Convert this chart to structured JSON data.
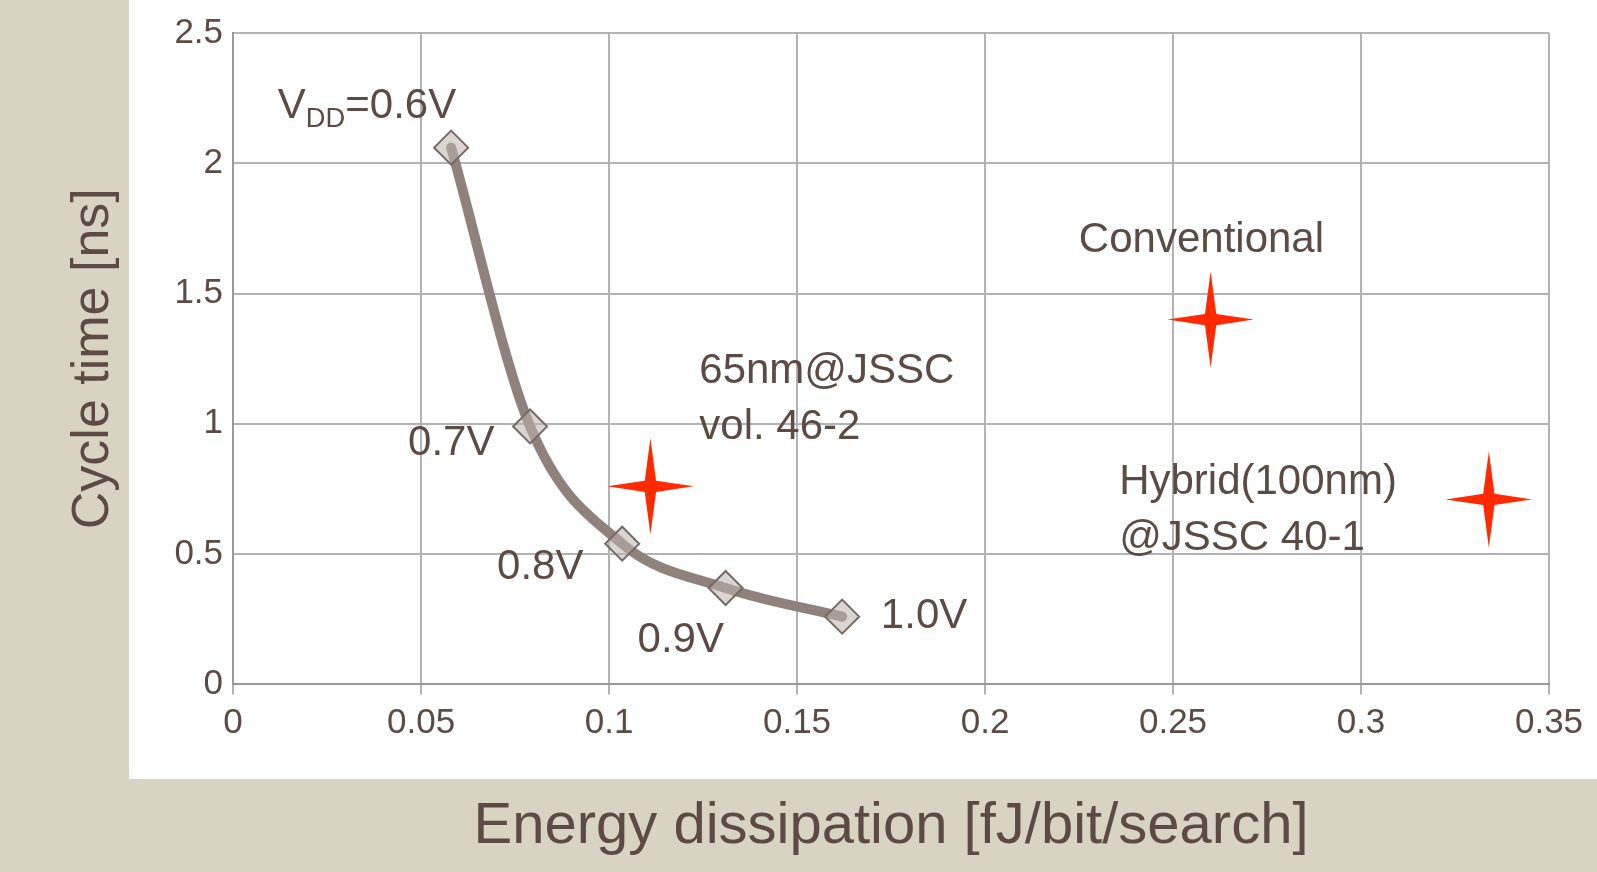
{
  "chart_data": {
    "type": "scatter",
    "xlabel": "Energy dissipation [fJ/bit/search]",
    "ylabel": "Cycle time [ns]",
    "xlim": [
      0,
      0.35
    ],
    "xticks": [
      0,
      0.05,
      0.1,
      0.15,
      0.2,
      0.25,
      0.3,
      0.35
    ],
    "ylim": [
      0,
      2.5
    ],
    "yticks": [
      0,
      0.5,
      1,
      1.5,
      2,
      2.5
    ],
    "grid": true,
    "legend": false,
    "series": [
      {
        "type": "line",
        "color": "#8f827c",
        "marker": "diamond",
        "x": [
          0.058,
          0.079,
          0.1035,
          0.131,
          0.162
        ],
        "values": [
          2.06,
          0.99,
          0.54,
          0.37,
          0.26
        ]
      },
      {
        "color": "#ff2a00",
        "marker": "star",
        "x": [
          0.111,
          0.26,
          0.334
        ],
        "values": [
          0.76,
          1.4,
          0.71
        ]
      }
    ],
    "annotations": [
      {
        "text": "V$_{DD}$=0.6V",
        "x": 0.058,
        "y": 2.06
      },
      {
        "text": "0.7V",
        "x": 0.079,
        "y": 0.99
      },
      {
        "text": "0.8V",
        "x": 0.1035,
        "y": 0.54
      },
      {
        "text": "0.9V",
        "x": 0.131,
        "y": 0.37
      },
      {
        "text": "1.0V",
        "x": 0.162,
        "y": 0.26
      },
      {
        "text": "65nm@JSSC\nvol. 46-2",
        "x": 0.111,
        "y": 0.76
      },
      {
        "text": "Conventional",
        "x": 0.26,
        "y": 1.4
      },
      {
        "text": "Hybrid(100nm)\n@JSSC 40-1",
        "x": 0.334,
        "y": 0.71
      }
    ]
  }
}
